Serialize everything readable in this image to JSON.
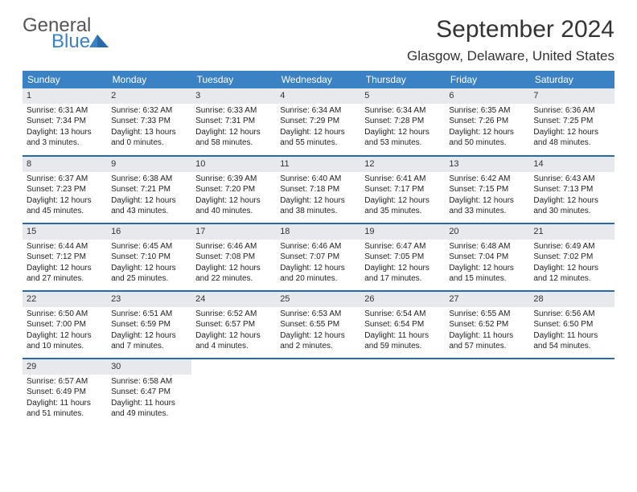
{
  "logo": {
    "general": "General",
    "blue": "Blue"
  },
  "title": "September 2024",
  "location": "Glasgow, Delaware, United States",
  "colors": {
    "header_bg": "#3b82c4",
    "header_text": "#ffffff",
    "rule": "#2a6aa8",
    "daynum_bg": "#e7e9ec",
    "text": "#222222"
  },
  "weekdays": [
    "Sunday",
    "Monday",
    "Tuesday",
    "Wednesday",
    "Thursday",
    "Friday",
    "Saturday"
  ],
  "weeks": [
    [
      {
        "n": "1",
        "sr": "Sunrise: 6:31 AM",
        "ss": "Sunset: 7:34 PM",
        "d1": "Daylight: 13 hours",
        "d2": "and 3 minutes."
      },
      {
        "n": "2",
        "sr": "Sunrise: 6:32 AM",
        "ss": "Sunset: 7:33 PM",
        "d1": "Daylight: 13 hours",
        "d2": "and 0 minutes."
      },
      {
        "n": "3",
        "sr": "Sunrise: 6:33 AM",
        "ss": "Sunset: 7:31 PM",
        "d1": "Daylight: 12 hours",
        "d2": "and 58 minutes."
      },
      {
        "n": "4",
        "sr": "Sunrise: 6:34 AM",
        "ss": "Sunset: 7:29 PM",
        "d1": "Daylight: 12 hours",
        "d2": "and 55 minutes."
      },
      {
        "n": "5",
        "sr": "Sunrise: 6:34 AM",
        "ss": "Sunset: 7:28 PM",
        "d1": "Daylight: 12 hours",
        "d2": "and 53 minutes."
      },
      {
        "n": "6",
        "sr": "Sunrise: 6:35 AM",
        "ss": "Sunset: 7:26 PM",
        "d1": "Daylight: 12 hours",
        "d2": "and 50 minutes."
      },
      {
        "n": "7",
        "sr": "Sunrise: 6:36 AM",
        "ss": "Sunset: 7:25 PM",
        "d1": "Daylight: 12 hours",
        "d2": "and 48 minutes."
      }
    ],
    [
      {
        "n": "8",
        "sr": "Sunrise: 6:37 AM",
        "ss": "Sunset: 7:23 PM",
        "d1": "Daylight: 12 hours",
        "d2": "and 45 minutes."
      },
      {
        "n": "9",
        "sr": "Sunrise: 6:38 AM",
        "ss": "Sunset: 7:21 PM",
        "d1": "Daylight: 12 hours",
        "d2": "and 43 minutes."
      },
      {
        "n": "10",
        "sr": "Sunrise: 6:39 AM",
        "ss": "Sunset: 7:20 PM",
        "d1": "Daylight: 12 hours",
        "d2": "and 40 minutes."
      },
      {
        "n": "11",
        "sr": "Sunrise: 6:40 AM",
        "ss": "Sunset: 7:18 PM",
        "d1": "Daylight: 12 hours",
        "d2": "and 38 minutes."
      },
      {
        "n": "12",
        "sr": "Sunrise: 6:41 AM",
        "ss": "Sunset: 7:17 PM",
        "d1": "Daylight: 12 hours",
        "d2": "and 35 minutes."
      },
      {
        "n": "13",
        "sr": "Sunrise: 6:42 AM",
        "ss": "Sunset: 7:15 PM",
        "d1": "Daylight: 12 hours",
        "d2": "and 33 minutes."
      },
      {
        "n": "14",
        "sr": "Sunrise: 6:43 AM",
        "ss": "Sunset: 7:13 PM",
        "d1": "Daylight: 12 hours",
        "d2": "and 30 minutes."
      }
    ],
    [
      {
        "n": "15",
        "sr": "Sunrise: 6:44 AM",
        "ss": "Sunset: 7:12 PM",
        "d1": "Daylight: 12 hours",
        "d2": "and 27 minutes."
      },
      {
        "n": "16",
        "sr": "Sunrise: 6:45 AM",
        "ss": "Sunset: 7:10 PM",
        "d1": "Daylight: 12 hours",
        "d2": "and 25 minutes."
      },
      {
        "n": "17",
        "sr": "Sunrise: 6:46 AM",
        "ss": "Sunset: 7:08 PM",
        "d1": "Daylight: 12 hours",
        "d2": "and 22 minutes."
      },
      {
        "n": "18",
        "sr": "Sunrise: 6:46 AM",
        "ss": "Sunset: 7:07 PM",
        "d1": "Daylight: 12 hours",
        "d2": "and 20 minutes."
      },
      {
        "n": "19",
        "sr": "Sunrise: 6:47 AM",
        "ss": "Sunset: 7:05 PM",
        "d1": "Daylight: 12 hours",
        "d2": "and 17 minutes."
      },
      {
        "n": "20",
        "sr": "Sunrise: 6:48 AM",
        "ss": "Sunset: 7:04 PM",
        "d1": "Daylight: 12 hours",
        "d2": "and 15 minutes."
      },
      {
        "n": "21",
        "sr": "Sunrise: 6:49 AM",
        "ss": "Sunset: 7:02 PM",
        "d1": "Daylight: 12 hours",
        "d2": "and 12 minutes."
      }
    ],
    [
      {
        "n": "22",
        "sr": "Sunrise: 6:50 AM",
        "ss": "Sunset: 7:00 PM",
        "d1": "Daylight: 12 hours",
        "d2": "and 10 minutes."
      },
      {
        "n": "23",
        "sr": "Sunrise: 6:51 AM",
        "ss": "Sunset: 6:59 PM",
        "d1": "Daylight: 12 hours",
        "d2": "and 7 minutes."
      },
      {
        "n": "24",
        "sr": "Sunrise: 6:52 AM",
        "ss": "Sunset: 6:57 PM",
        "d1": "Daylight: 12 hours",
        "d2": "and 4 minutes."
      },
      {
        "n": "25",
        "sr": "Sunrise: 6:53 AM",
        "ss": "Sunset: 6:55 PM",
        "d1": "Daylight: 12 hours",
        "d2": "and 2 minutes."
      },
      {
        "n": "26",
        "sr": "Sunrise: 6:54 AM",
        "ss": "Sunset: 6:54 PM",
        "d1": "Daylight: 11 hours",
        "d2": "and 59 minutes."
      },
      {
        "n": "27",
        "sr": "Sunrise: 6:55 AM",
        "ss": "Sunset: 6:52 PM",
        "d1": "Daylight: 11 hours",
        "d2": "and 57 minutes."
      },
      {
        "n": "28",
        "sr": "Sunrise: 6:56 AM",
        "ss": "Sunset: 6:50 PM",
        "d1": "Daylight: 11 hours",
        "d2": "and 54 minutes."
      }
    ],
    [
      {
        "n": "29",
        "sr": "Sunrise: 6:57 AM",
        "ss": "Sunset: 6:49 PM",
        "d1": "Daylight: 11 hours",
        "d2": "and 51 minutes."
      },
      {
        "n": "30",
        "sr": "Sunrise: 6:58 AM",
        "ss": "Sunset: 6:47 PM",
        "d1": "Daylight: 11 hours",
        "d2": "and 49 minutes."
      },
      {
        "empty": true
      },
      {
        "empty": true
      },
      {
        "empty": true
      },
      {
        "empty": true
      },
      {
        "empty": true
      }
    ]
  ]
}
